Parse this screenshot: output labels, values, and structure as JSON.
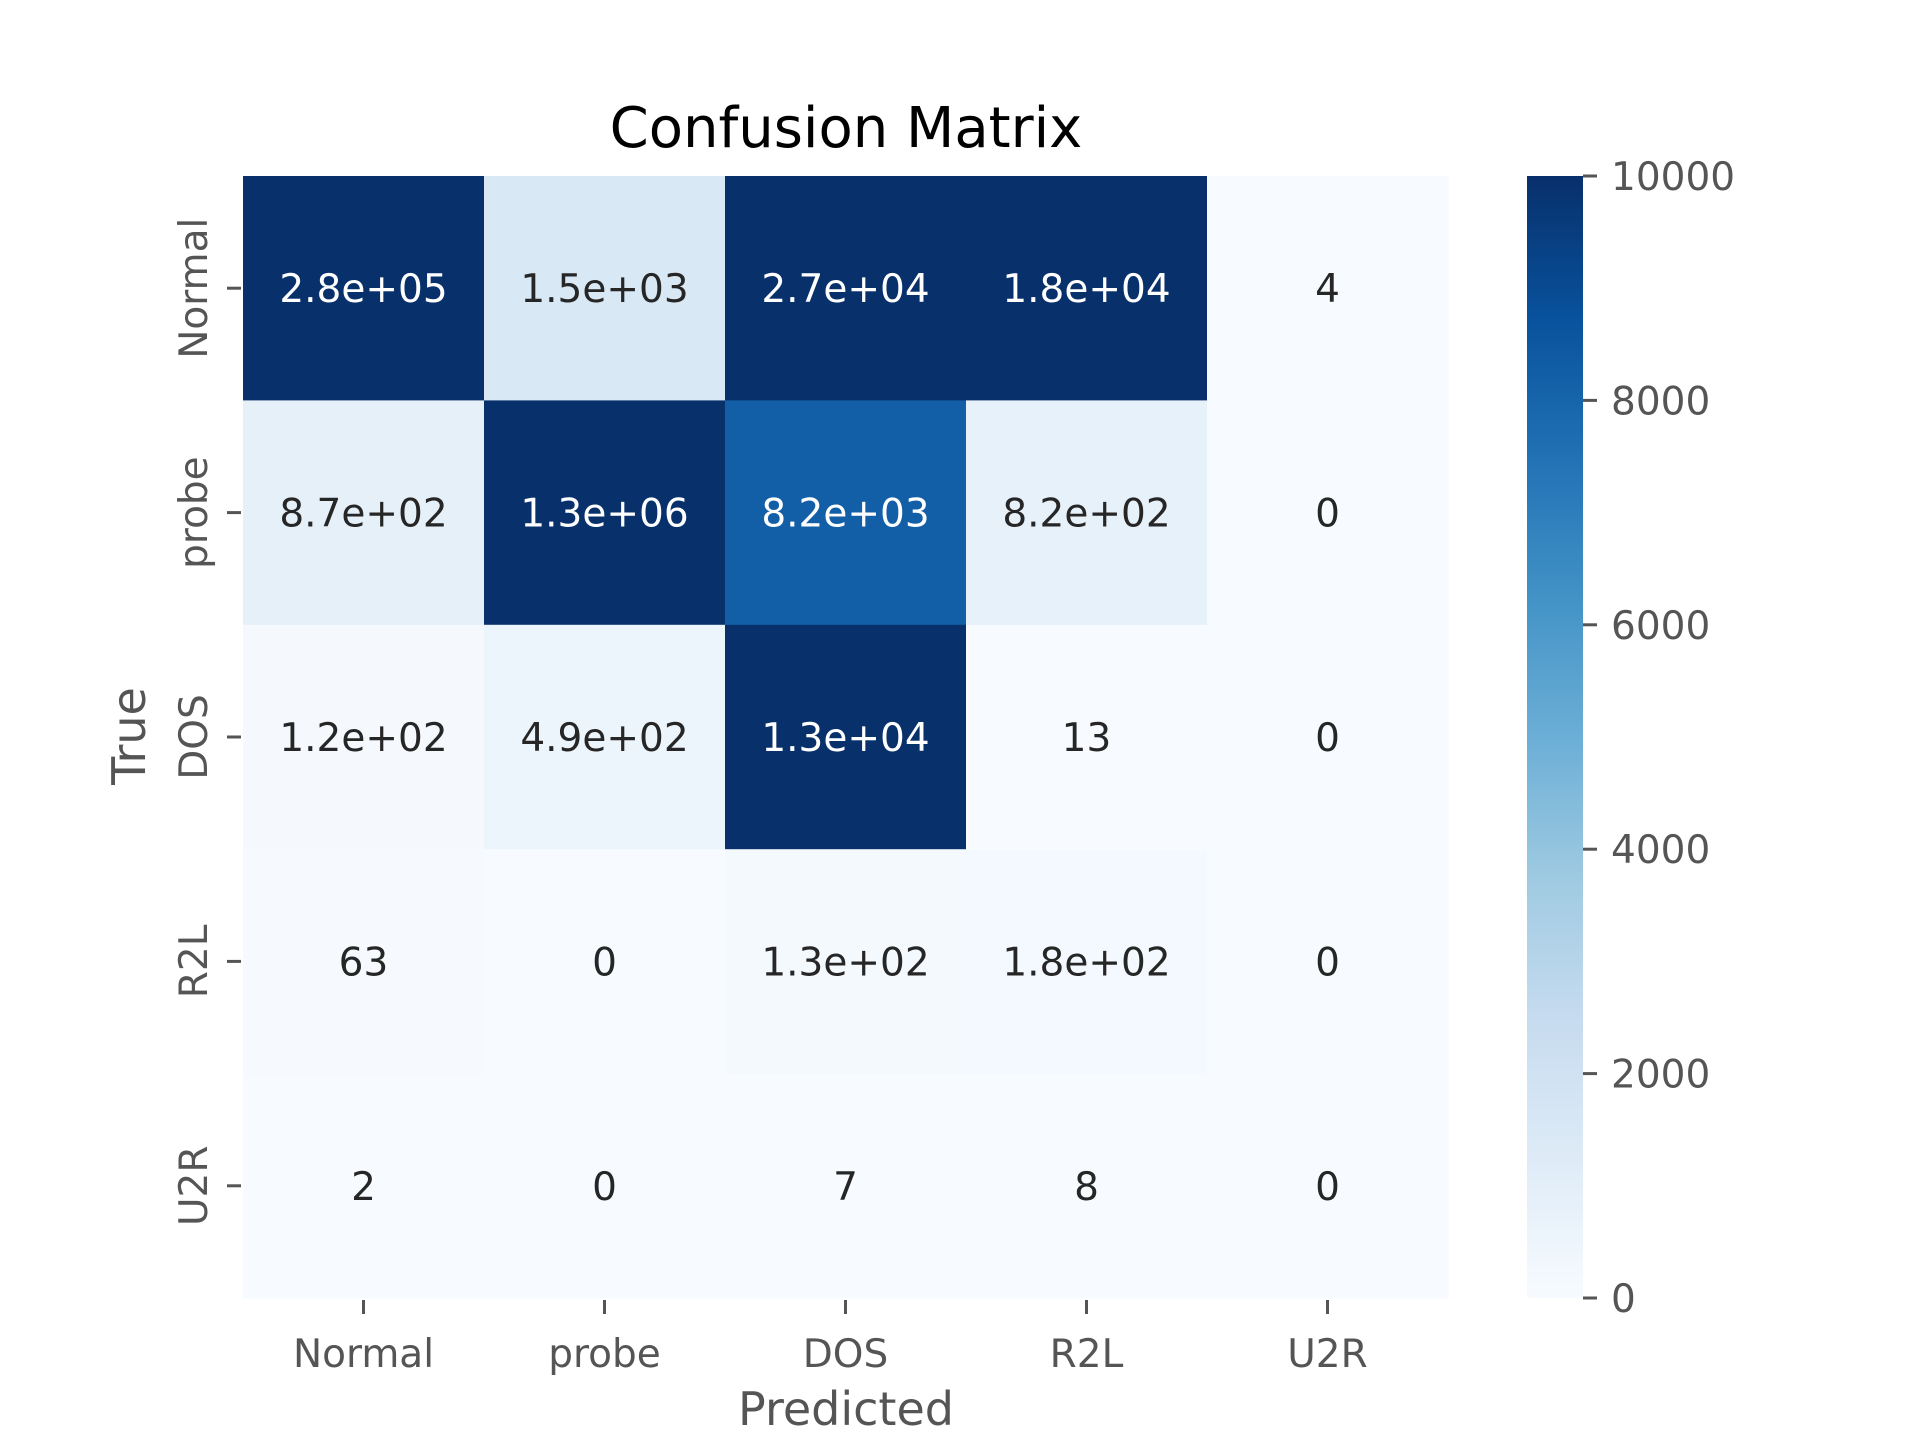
{
  "chart_data": {
    "type": "heatmap",
    "title": "Confusion Matrix",
    "xlabel": "Predicted",
    "ylabel": "True",
    "x_categories": [
      "Normal",
      "probe",
      "DOS",
      "R2L",
      "U2R"
    ],
    "y_categories": [
      "Normal",
      "probe",
      "DOS",
      "R2L",
      "U2R"
    ],
    "values": [
      [
        280000,
        1500,
        27000,
        18000,
        4
      ],
      [
        870,
        1300000,
        8200,
        820,
        0
      ],
      [
        120,
        490,
        13000,
        13,
        0
      ],
      [
        63,
        0,
        130,
        180,
        0
      ],
      [
        2,
        0,
        7,
        8,
        0
      ]
    ],
    "annotations": [
      [
        "2.8e+05",
        "1.5e+03",
        "2.7e+04",
        "1.8e+04",
        "4"
      ],
      [
        "8.7e+02",
        "1.3e+06",
        "8.2e+03",
        "8.2e+02",
        "0"
      ],
      [
        "1.2e+02",
        "4.9e+02",
        "1.3e+04",
        "13",
        "0"
      ],
      [
        "63",
        "0",
        "1.3e+02",
        "1.8e+02",
        "0"
      ],
      [
        "2",
        "0",
        "7",
        "8",
        "0"
      ]
    ],
    "colorbar": {
      "vmin": 0,
      "vmax": 10000,
      "ticks": [
        0,
        2000,
        4000,
        6000,
        8000,
        10000
      ],
      "colormap": "Blues"
    },
    "grid": false
  },
  "colors": {
    "light_text": "#ffffff",
    "dark_text": "#262626",
    "colormap_stops": [
      "#f7fbff",
      "#deebf7",
      "#c6dbef",
      "#9ecae1",
      "#6baed6",
      "#4292c6",
      "#2171b5",
      "#08519c",
      "#08306b"
    ]
  }
}
